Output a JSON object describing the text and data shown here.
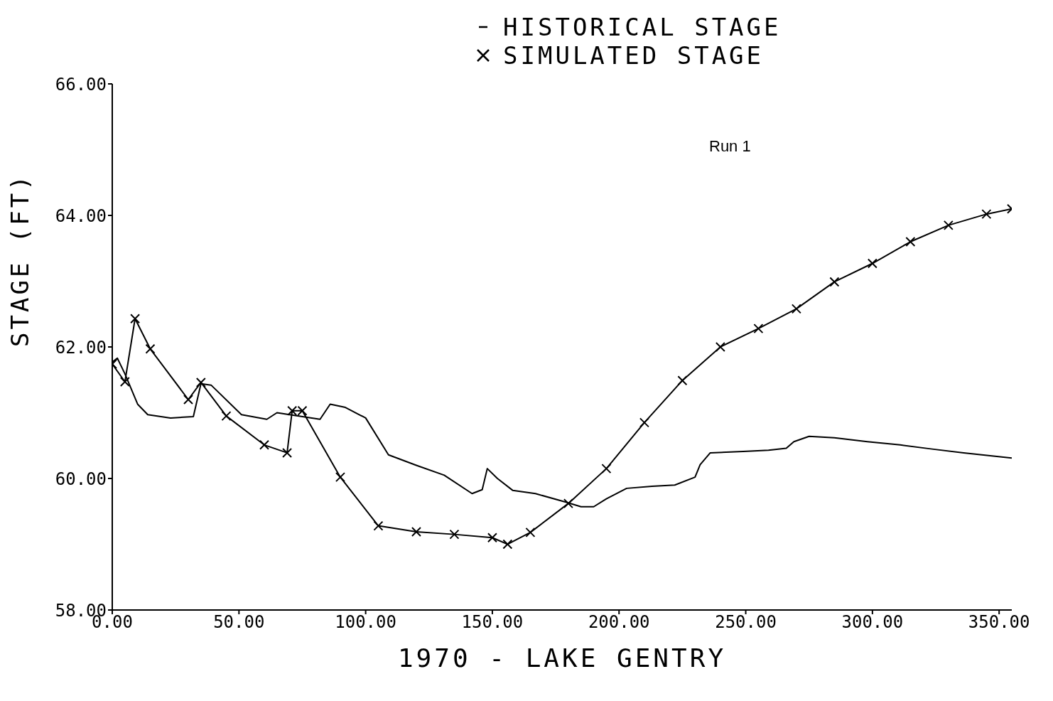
{
  "chart_data": {
    "type": "line",
    "xlabel": "1970 - LAKE GENTRY",
    "ylabel": "STAGE (FT)",
    "annotations": [
      "Run 1"
    ],
    "legend": "top",
    "grid": false,
    "line_style": "solid",
    "xlim": [
      0,
      355
    ],
    "xticks": [
      {
        "value": 0,
        "label": "0.00"
      },
      {
        "value": 50,
        "label": "50.00"
      },
      {
        "value": 100,
        "label": "100.00"
      },
      {
        "value": 150,
        "label": "150.00"
      },
      {
        "value": 200,
        "label": "200.00"
      },
      {
        "value": 250,
        "label": "250.00"
      },
      {
        "value": 300,
        "label": "300.00"
      },
      {
        "value": 350,
        "label": "350.00"
      }
    ],
    "ylim": [
      58,
      66
    ],
    "yticks": [
      {
        "value": 58,
        "label": "58.00"
      },
      {
        "value": 60,
        "label": "60.00"
      },
      {
        "value": 62,
        "label": "62.00"
      },
      {
        "value": 64,
        "label": "64.00"
      },
      {
        "value": 66,
        "label": "66.00"
      }
    ],
    "series": [
      {
        "name": "HISTORICAL STAGE",
        "color": "#000000",
        "marker": "none",
        "x": [
          0,
          2,
          5,
          10,
          14,
          23,
          32,
          35,
          39,
          51,
          61,
          65,
          70,
          82,
          86,
          92,
          100,
          109,
          120,
          131,
          142,
          146,
          148,
          152,
          158,
          167,
          179,
          185,
          190,
          195,
          203,
          213,
          222,
          230,
          232,
          236,
          249,
          259,
          266,
          269,
          275,
          285,
          298,
          311,
          323,
          336,
          355
        ],
        "values": [
          61.77,
          61.83,
          61.59,
          61.13,
          60.97,
          60.92,
          60.94,
          61.44,
          61.42,
          60.97,
          60.9,
          61.0,
          60.97,
          60.9,
          61.13,
          61.08,
          60.92,
          60.36,
          60.2,
          60.05,
          59.77,
          59.83,
          60.15,
          60.0,
          59.82,
          59.77,
          59.64,
          59.57,
          59.57,
          59.69,
          59.85,
          59.88,
          59.9,
          60.02,
          60.21,
          60.39,
          60.41,
          60.43,
          60.46,
          60.56,
          60.64,
          60.62,
          60.56,
          60.51,
          60.45,
          60.39,
          60.31
        ]
      },
      {
        "name": "SIMULATED STAGE",
        "color": "#000000",
        "marker": "cross",
        "x": [
          0,
          5,
          9,
          15,
          30,
          35,
          45,
          60,
          69,
          71,
          75,
          90,
          105,
          120,
          135,
          150,
          156,
          165,
          180,
          195,
          210,
          225,
          240,
          255,
          270,
          285,
          300,
          315,
          330,
          345,
          355
        ],
        "values": [
          61.74,
          61.47,
          62.43,
          61.97,
          61.2,
          61.46,
          60.95,
          60.51,
          60.39,
          61.03,
          61.03,
          60.02,
          59.28,
          59.19,
          59.15,
          59.1,
          59.0,
          59.18,
          59.62,
          60.15,
          60.85,
          61.49,
          62.0,
          62.28,
          62.58,
          62.99,
          63.27,
          63.6,
          63.85,
          64.02,
          64.1
        ]
      }
    ]
  }
}
